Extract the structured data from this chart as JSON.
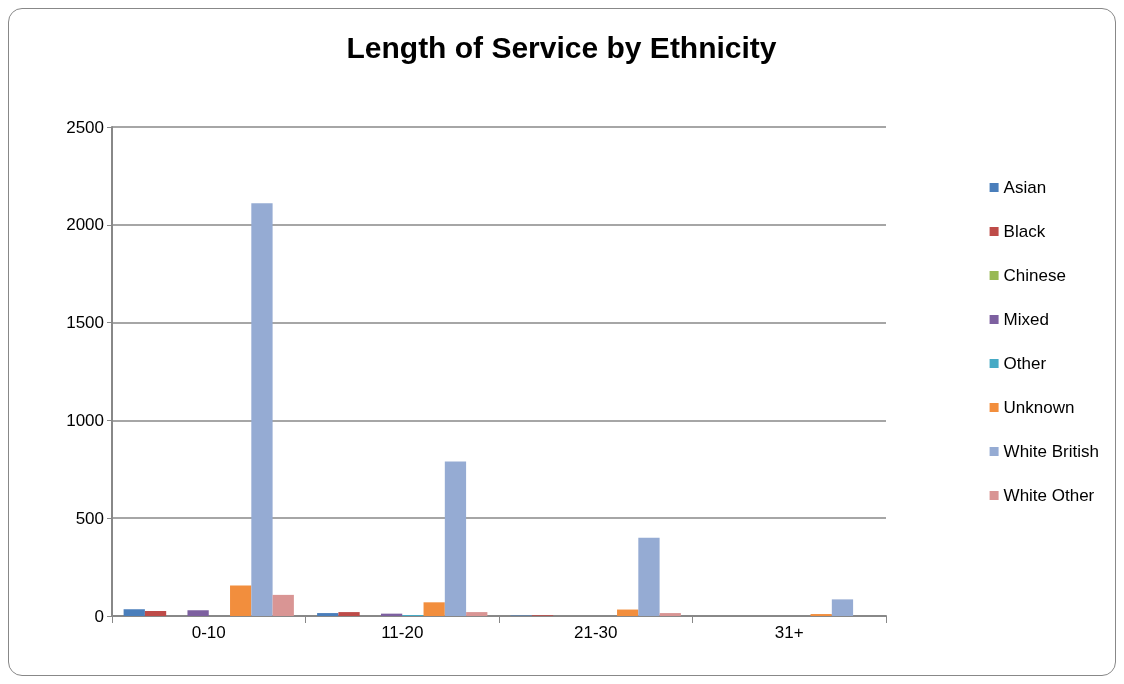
{
  "chart_data": {
    "type": "bar",
    "title": "Length of Service by Ethnicity",
    "categories": [
      "0-10",
      "11-20",
      "21-30",
      "31+"
    ],
    "series": [
      {
        "name": "Asian",
        "color": "#4a7ebb",
        "values": [
          34,
          15,
          3,
          0
        ]
      },
      {
        "name": "Black",
        "color": "#be4b48",
        "values": [
          25,
          20,
          4,
          0
        ]
      },
      {
        "name": "Chinese",
        "color": "#98b954",
        "values": [
          0,
          0,
          0,
          0
        ]
      },
      {
        "name": "Mixed",
        "color": "#7d60a0",
        "values": [
          30,
          12,
          0,
          0
        ]
      },
      {
        "name": "Other",
        "color": "#46aac5",
        "values": [
          null,
          5,
          0,
          0
        ]
      },
      {
        "name": "Unknown",
        "color": "#f28e3d",
        "values": [
          156,
          70,
          33,
          10
        ]
      },
      {
        "name": "White British",
        "color": "#95abd3",
        "values": [
          2110,
          790,
          400,
          85
        ]
      },
      {
        "name": "White Other",
        "color": "#d99594",
        "values": [
          108,
          20,
          15,
          0
        ]
      }
    ],
    "ylim": [
      0,
      2500
    ],
    "yticks": [
      0,
      500,
      1000,
      1500,
      2000,
      2500
    ],
    "grid": "y",
    "legend": "right"
  }
}
